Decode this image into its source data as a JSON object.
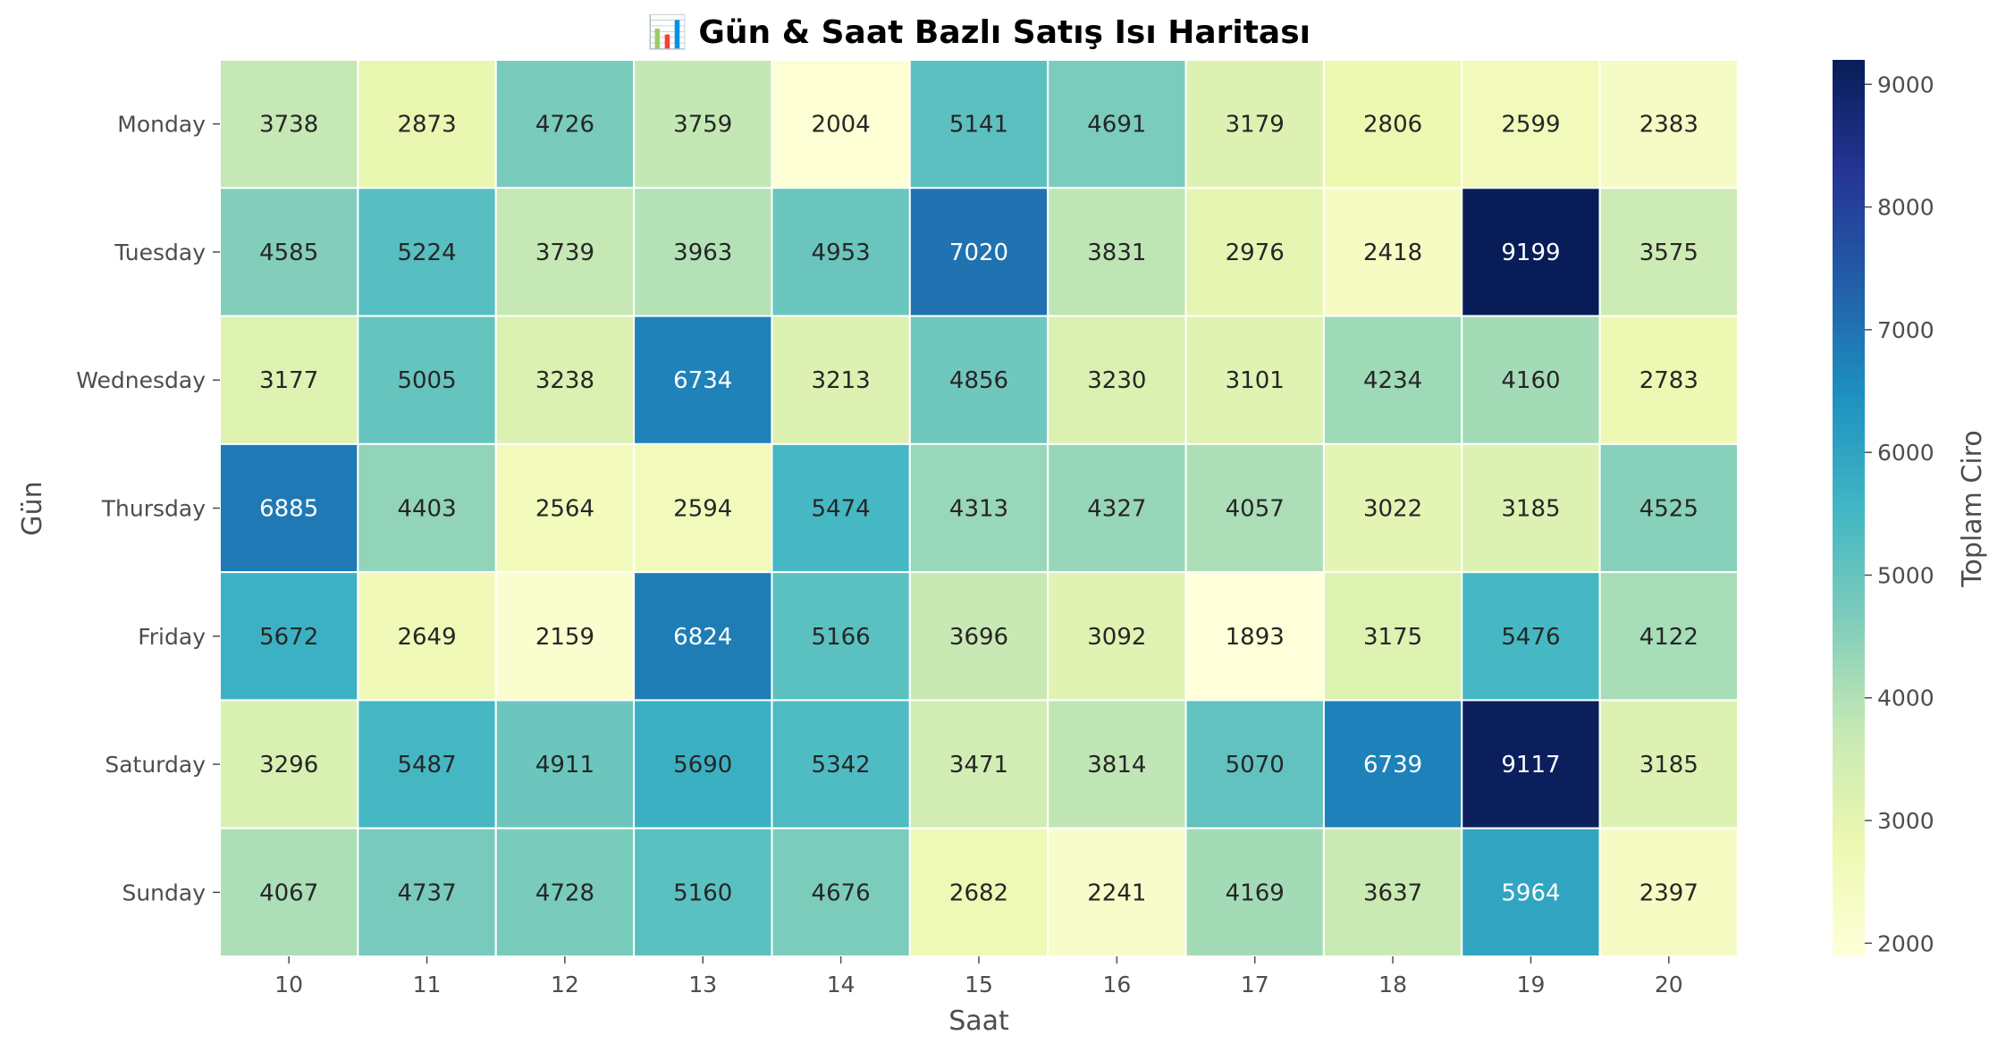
{
  "chart_data": {
    "type": "heatmap",
    "title": "📊 Gün & Saat Bazlı Satış Isı Haritası",
    "xlabel": "Saat",
    "ylabel": "Gün",
    "x": [
      "10",
      "11",
      "12",
      "13",
      "14",
      "15",
      "16",
      "17",
      "18",
      "19",
      "20"
    ],
    "y": [
      "Monday",
      "Tuesday",
      "Wednesday",
      "Thursday",
      "Friday",
      "Saturday",
      "Sunday"
    ],
    "values": [
      [
        3738,
        2873,
        4726,
        3759,
        2004,
        5141,
        4691,
        3179,
        2806,
        2599,
        2383
      ],
      [
        4585,
        5224,
        3739,
        3963,
        4953,
        7020,
        3831,
        2976,
        2418,
        9199,
        3575
      ],
      [
        3177,
        5005,
        3238,
        6734,
        3213,
        4856,
        3230,
        3101,
        4234,
        4160,
        2783
      ],
      [
        6885,
        4403,
        2564,
        2594,
        5474,
        4313,
        4327,
        4057,
        3022,
        3185,
        4525
      ],
      [
        5672,
        2649,
        2159,
        6824,
        5166,
        3696,
        3092,
        1893,
        3175,
        5476,
        4122
      ],
      [
        3296,
        5487,
        4911,
        5690,
        5342,
        3471,
        3814,
        5070,
        6739,
        9117,
        3185
      ],
      [
        4067,
        4737,
        4728,
        5160,
        4676,
        2682,
        2241,
        4169,
        3637,
        5964,
        2397
      ]
    ],
    "colorbar": {
      "label": "Toplam Ciro",
      "vmin": 1893,
      "vmax": 9199,
      "ticks": [
        2000,
        3000,
        4000,
        5000,
        6000,
        7000,
        8000,
        9000
      ]
    },
    "colormap": "YlGnBu",
    "colormap_stops": [
      "#ffffd9",
      "#edf8b1",
      "#c7e9b4",
      "#7fcdbb",
      "#41b6c4",
      "#1d91c0",
      "#225ea8",
      "#253494",
      "#081d58"
    ],
    "grid": false
  }
}
